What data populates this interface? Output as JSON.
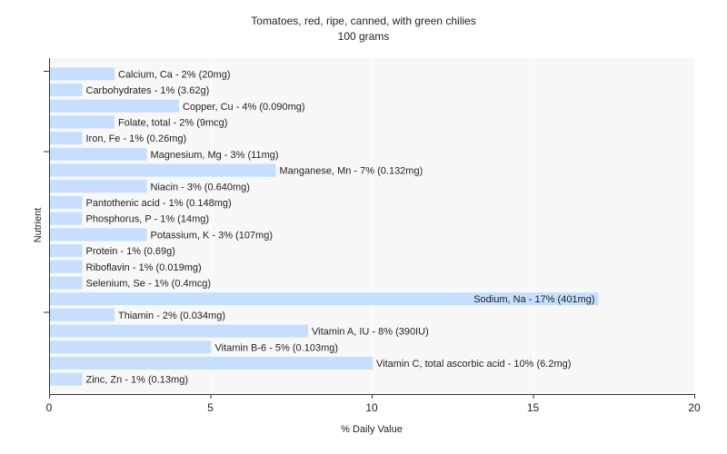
{
  "chart_data": {
    "type": "bar",
    "orientation": "horizontal",
    "title": "Tomatoes, red, ripe, canned, with green chilies",
    "subtitle": "100 grams",
    "xlabel": "% Daily Value",
    "ylabel": "Nutrient",
    "xlim": [
      0,
      20
    ],
    "xticks": [
      "0",
      "5",
      "10",
      "15",
      "20"
    ],
    "grid": true,
    "legend": "none",
    "bar_color": "#c6deff",
    "plot_background": "#f8f8f8",
    "grid_color": "#ffffff",
    "categories": [
      "Calcium, Ca",
      "Carbohydrates",
      "Copper, Cu",
      "Folate, total",
      "Iron, Fe",
      "Magnesium, Mg",
      "Manganese, Mn",
      "Niacin",
      "Pantothenic acid",
      "Phosphorus, P",
      "Potassium, K",
      "Protein",
      "Riboflavin",
      "Selenium, Se",
      "Sodium, Na",
      "Thiamin",
      "Vitamin A, IU",
      "Vitamin B-6",
      "Vitamin C, total ascorbic acid",
      "Zinc, Zn"
    ],
    "values": [
      2,
      1,
      4,
      2,
      1,
      3,
      7,
      3,
      1,
      1,
      3,
      1,
      1,
      1,
      17,
      2,
      8,
      5,
      10,
      1
    ],
    "labels": [
      "Calcium, Ca - 2% (20mg)",
      "Carbohydrates - 1% (3.62g)",
      "Copper, Cu - 4% (0.090mg)",
      "Folate, total - 2% (9mcg)",
      "Iron, Fe - 1% (0.26mg)",
      "Magnesium, Mg - 3% (11mg)",
      "Manganese, Mn - 7% (0.132mg)",
      "Niacin - 3% (0.640mg)",
      "Pantothenic acid - 1% (0.148mg)",
      "Phosphorus, P - 1% (14mg)",
      "Potassium, K - 3% (107mg)",
      "Protein - 1% (0.69g)",
      "Riboflavin - 1% (0.019mg)",
      "Selenium, Se - 1% (0.4mcg)",
      "Sodium, Na - 17% (401mg)",
      "Thiamin - 2% (0.034mg)",
      "Vitamin A, IU - 8% (390IU)",
      "Vitamin B-6 - 5% (0.103mg)",
      "Vitamin C, total ascorbic acid - 10% (6.2mg)",
      "Zinc, Zn - 1% (0.13mg)"
    ]
  }
}
